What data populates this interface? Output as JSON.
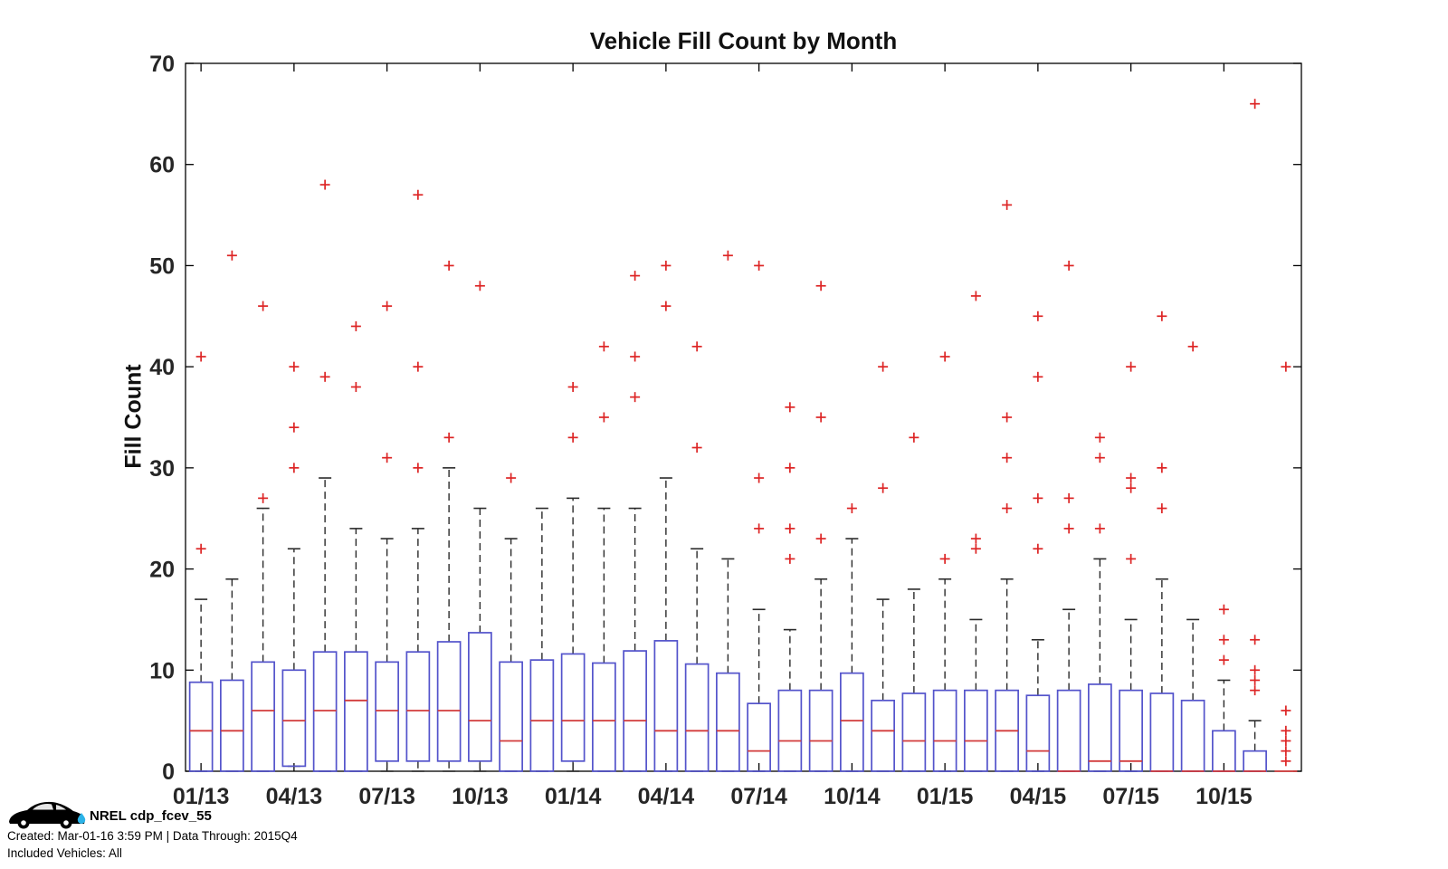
{
  "chart_data": {
    "type": "boxplot",
    "title": "Vehicle Fill Count by Month",
    "ylabel": "Fill Count",
    "ylim": [
      0,
      70
    ],
    "yticks": [
      0,
      10,
      20,
      30,
      40,
      50,
      60,
      70
    ],
    "xtick_every": 3,
    "grid": false,
    "legend": "none",
    "colors": {
      "box": "#5353cb",
      "median": "#d23b3b",
      "outlier": "#dd2525",
      "whisker": "#2a2a2a",
      "frame": "#000000",
      "tick_label": "#262626"
    },
    "boxes": [
      {
        "m": "01/13",
        "lo": 0,
        "q1": 0,
        "med": 4,
        "q3": 8.8,
        "hi": 17,
        "out": [
          22,
          41
        ]
      },
      {
        "m": "02/13",
        "lo": 0,
        "q1": 0,
        "med": 4,
        "q3": 9,
        "hi": 19,
        "out": [
          51
        ]
      },
      {
        "m": "03/13",
        "lo": 0,
        "q1": 0,
        "med": 6,
        "q3": 10.8,
        "hi": 26,
        "out": [
          27,
          46
        ]
      },
      {
        "m": "04/13",
        "lo": 0.5,
        "q1": 0.5,
        "med": 5,
        "q3": 10,
        "hi": 22,
        "out": [
          30,
          34,
          40
        ]
      },
      {
        "m": "05/13",
        "lo": 0,
        "q1": 0,
        "med": 6,
        "q3": 11.8,
        "hi": 29,
        "out": [
          39,
          58
        ]
      },
      {
        "m": "06/13",
        "lo": 0,
        "q1": 0,
        "med": 7,
        "q3": 11.8,
        "hi": 24,
        "out": [
          38,
          44
        ]
      },
      {
        "m": "07/13",
        "lo": 0,
        "q1": 1,
        "med": 6,
        "q3": 10.8,
        "hi": 23,
        "out": [
          31,
          46
        ]
      },
      {
        "m": "08/13",
        "lo": 0,
        "q1": 1,
        "med": 6,
        "q3": 11.8,
        "hi": 24,
        "out": [
          30,
          40,
          57
        ]
      },
      {
        "m": "09/13",
        "lo": 0,
        "q1": 1,
        "med": 6,
        "q3": 12.8,
        "hi": 30,
        "out": [
          33,
          50
        ]
      },
      {
        "m": "10/13",
        "lo": 0,
        "q1": 1,
        "med": 5,
        "q3": 13.7,
        "hi": 26,
        "out": [
          48
        ]
      },
      {
        "m": "11/13",
        "lo": 0,
        "q1": 0,
        "med": 3,
        "q3": 10.8,
        "hi": 23,
        "out": [
          29
        ]
      },
      {
        "m": "12/13",
        "lo": 0,
        "q1": 0,
        "med": 5,
        "q3": 11,
        "hi": 26,
        "out": []
      },
      {
        "m": "01/14",
        "lo": 0,
        "q1": 1,
        "med": 5,
        "q3": 11.6,
        "hi": 27,
        "out": [
          33,
          38
        ]
      },
      {
        "m": "02/14",
        "lo": 0,
        "q1": 0,
        "med": 5,
        "q3": 10.7,
        "hi": 26,
        "out": [
          35,
          42
        ]
      },
      {
        "m": "03/14",
        "lo": 0,
        "q1": 0,
        "med": 5,
        "q3": 11.9,
        "hi": 26,
        "out": [
          37,
          41,
          49
        ]
      },
      {
        "m": "04/14",
        "lo": 0,
        "q1": 0,
        "med": 4,
        "q3": 12.9,
        "hi": 29,
        "out": [
          46,
          50
        ]
      },
      {
        "m": "05/14",
        "lo": 0,
        "q1": 0,
        "med": 4,
        "q3": 10.6,
        "hi": 22,
        "out": [
          32,
          42
        ]
      },
      {
        "m": "06/14",
        "lo": 0,
        "q1": 0,
        "med": 4,
        "q3": 9.7,
        "hi": 21,
        "out": [
          51
        ]
      },
      {
        "m": "07/14",
        "lo": 0,
        "q1": 0,
        "med": 2,
        "q3": 6.7,
        "hi": 16,
        "out": [
          24,
          29,
          50
        ]
      },
      {
        "m": "08/14",
        "lo": 0,
        "q1": 0,
        "med": 3,
        "q3": 8,
        "hi": 14,
        "out": [
          21,
          24,
          30,
          36
        ]
      },
      {
        "m": "09/14",
        "lo": 0,
        "q1": 0,
        "med": 3,
        "q3": 8,
        "hi": 19,
        "out": [
          23,
          35,
          48
        ]
      },
      {
        "m": "10/14",
        "lo": 0,
        "q1": 0,
        "med": 5,
        "q3": 9.7,
        "hi": 23,
        "out": [
          26
        ]
      },
      {
        "m": "11/14",
        "lo": 0,
        "q1": 0,
        "med": 4,
        "q3": 7,
        "hi": 17,
        "out": [
          28,
          40
        ]
      },
      {
        "m": "12/14",
        "lo": 0,
        "q1": 0,
        "med": 3,
        "q3": 7.7,
        "hi": 18,
        "out": [
          33
        ]
      },
      {
        "m": "01/15",
        "lo": 0,
        "q1": 0,
        "med": 3,
        "q3": 8,
        "hi": 19,
        "out": [
          21,
          41
        ]
      },
      {
        "m": "02/15",
        "lo": 0,
        "q1": 0,
        "med": 3,
        "q3": 8,
        "hi": 15,
        "out": [
          22,
          23,
          47
        ]
      },
      {
        "m": "03/15",
        "lo": 0,
        "q1": 0,
        "med": 4,
        "q3": 8,
        "hi": 19,
        "out": [
          26,
          31,
          35,
          56
        ]
      },
      {
        "m": "04/15",
        "lo": 0,
        "q1": 0,
        "med": 2,
        "q3": 7.5,
        "hi": 13,
        "out": [
          22,
          27,
          39,
          45
        ]
      },
      {
        "m": "05/15",
        "lo": 0,
        "q1": 0,
        "med": 0,
        "q3": 8,
        "hi": 16,
        "out": [
          24,
          27,
          50
        ]
      },
      {
        "m": "06/15",
        "lo": 0,
        "q1": 0,
        "med": 1,
        "q3": 8.6,
        "hi": 21,
        "out": [
          24,
          31,
          33
        ]
      },
      {
        "m": "07/15",
        "lo": 0,
        "q1": 0,
        "med": 1,
        "q3": 8,
        "hi": 15,
        "out": [
          21,
          28,
          29,
          40
        ]
      },
      {
        "m": "08/15",
        "lo": 0,
        "q1": 0,
        "med": 0,
        "q3": 7.7,
        "hi": 19,
        "out": [
          26,
          30,
          45
        ]
      },
      {
        "m": "09/15",
        "lo": 0,
        "q1": 0,
        "med": 0,
        "q3": 7,
        "hi": 15,
        "out": [
          42
        ]
      },
      {
        "m": "10/15",
        "lo": 0,
        "q1": 0,
        "med": 0,
        "q3": 4,
        "hi": 9,
        "out": [
          11,
          13,
          16
        ]
      },
      {
        "m": "11/15",
        "lo": 0,
        "q1": 0,
        "med": 0,
        "q3": 2,
        "hi": 5,
        "out": [
          8,
          9,
          10,
          13,
          66
        ]
      },
      {
        "m": "12/15",
        "lo": 0,
        "q1": 0,
        "med": 0,
        "q3": 0,
        "hi": 0,
        "out": [
          1,
          2,
          3,
          4,
          6,
          40
        ]
      }
    ]
  },
  "footer": {
    "dataset": "NREL cdp_fcev_55",
    "created": "Created: Mar-01-16  3:59 PM | Data Through: 2015Q4",
    "vehicles": "Included Vehicles: All",
    "logo": "nrel-car-with-water-drop",
    "drop_color": "#2bb3e8"
  }
}
